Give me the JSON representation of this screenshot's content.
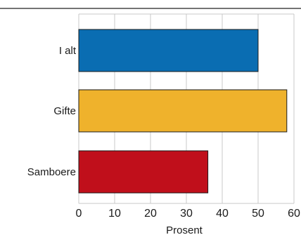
{
  "chart_data": {
    "type": "bar",
    "orientation": "horizontal",
    "categories": [
      "I alt",
      "Gifte",
      "Samboere"
    ],
    "values": [
      50,
      58,
      36
    ],
    "colors": [
      "#0a6db2",
      "#efb22c",
      "#c00f1b"
    ],
    "xlabel": "Prosent",
    "xlim": [
      0,
      60
    ],
    "xticks": [
      0,
      10,
      20,
      30,
      40,
      50,
      60
    ],
    "grid": true
  }
}
